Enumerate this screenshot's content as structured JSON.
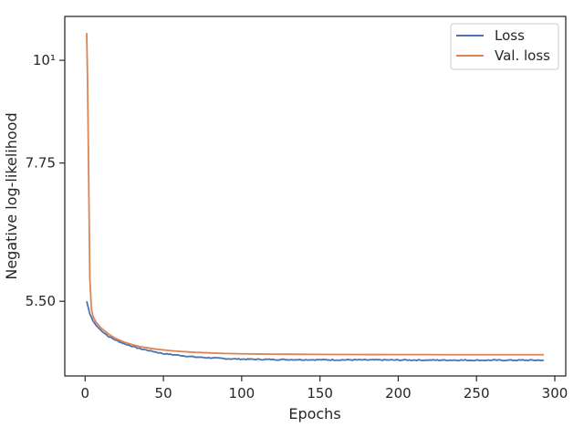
{
  "chart_data": {
    "type": "line",
    "xlabel": "Epochs",
    "ylabel": "Negative log-likelihood",
    "xlim": [
      -13,
      307
    ],
    "ylim": [
      4.57,
      11.15
    ],
    "x_scale": "linear",
    "y_scale": "log",
    "grid": false,
    "legend_position": "top-right",
    "x_ticks": [
      0,
      50,
      100,
      150,
      200,
      250,
      300
    ],
    "x_tick_labels": [
      "0",
      "50",
      "100",
      "150",
      "200",
      "250",
      "300"
    ],
    "y_ticks": [
      5.5,
      7.75,
      10
    ],
    "y_tick_labels": [
      "5.50",
      "7.75",
      "10¹"
    ],
    "series": [
      {
        "name": "Loss",
        "color": "#4c72b0",
        "x": [
          1,
          3,
          5,
          7,
          10,
          15,
          20,
          25,
          30,
          35,
          40,
          45,
          50,
          55,
          60,
          65,
          70,
          75,
          80,
          85,
          90,
          95,
          100,
          110,
          120,
          130,
          140,
          150,
          160,
          170,
          180,
          190,
          200,
          210,
          220,
          230,
          240,
          250,
          260,
          270,
          280,
          293
        ],
        "y": [
          5.5,
          5.33,
          5.24,
          5.18,
          5.12,
          5.04,
          4.99,
          4.95,
          4.92,
          4.89,
          4.87,
          4.85,
          4.83,
          4.82,
          4.81,
          4.8,
          4.79,
          4.785,
          4.78,
          4.775,
          4.77,
          4.767,
          4.765,
          4.762,
          4.76,
          4.759,
          4.758,
          4.757,
          4.756,
          4.756,
          4.755,
          4.755,
          4.754,
          4.754,
          4.753,
          4.753,
          4.753,
          4.752,
          4.752,
          4.752,
          4.752,
          4.752
        ]
      },
      {
        "name": "Val. loss",
        "color": "#dd8452",
        "x": [
          1,
          1.5,
          2,
          2.5,
          3,
          4,
          5,
          7,
          10,
          15,
          20,
          25,
          30,
          35,
          40,
          45,
          50,
          55,
          60,
          65,
          70,
          75,
          80,
          85,
          90,
          95,
          100,
          110,
          120,
          130,
          140,
          150,
          160,
          170,
          180,
          190,
          200,
          210,
          220,
          230,
          240,
          250,
          260,
          270,
          280,
          293
        ],
        "y": [
          10.7,
          9.6,
          8.2,
          6.9,
          5.82,
          5.4,
          5.3,
          5.22,
          5.15,
          5.07,
          5.01,
          4.97,
          4.94,
          4.915,
          4.9,
          4.885,
          4.875,
          4.865,
          4.858,
          4.852,
          4.846,
          4.842,
          4.838,
          4.835,
          4.832,
          4.83,
          4.828,
          4.826,
          4.824,
          4.823,
          4.822,
          4.821,
          4.82,
          4.82,
          4.819,
          4.819,
          4.818,
          4.818,
          4.818,
          4.817,
          4.817,
          4.817,
          4.817,
          4.817,
          4.817,
          4.817
        ]
      }
    ]
  }
}
